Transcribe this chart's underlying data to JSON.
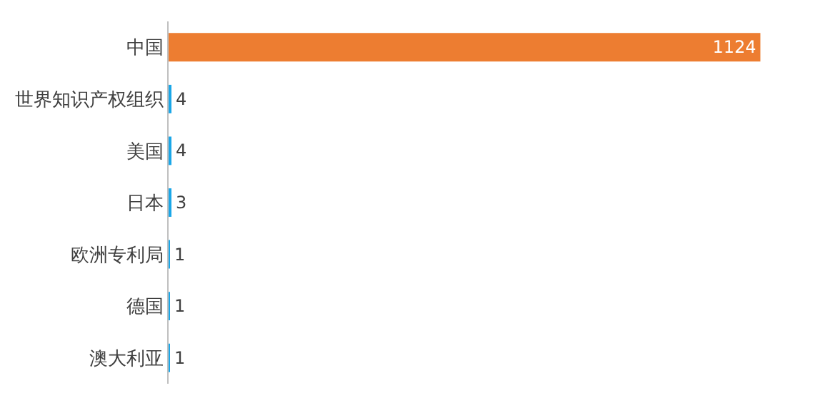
{
  "chart_data": {
    "type": "bar",
    "orientation": "horizontal",
    "categories": [
      "中国",
      "世界知识产权组织",
      "美国",
      "日本",
      "欧洲专利局",
      "德国",
      "澳大利亚"
    ],
    "values": [
      1124,
      4,
      4,
      3,
      1,
      1,
      1
    ],
    "colors": [
      "#ed7d31",
      "#1aa7e8",
      "#1aa7e8",
      "#1aa7e8",
      "#1aa7e8",
      "#1aa7e8",
      "#1aa7e8"
    ],
    "data_labels": true
  }
}
